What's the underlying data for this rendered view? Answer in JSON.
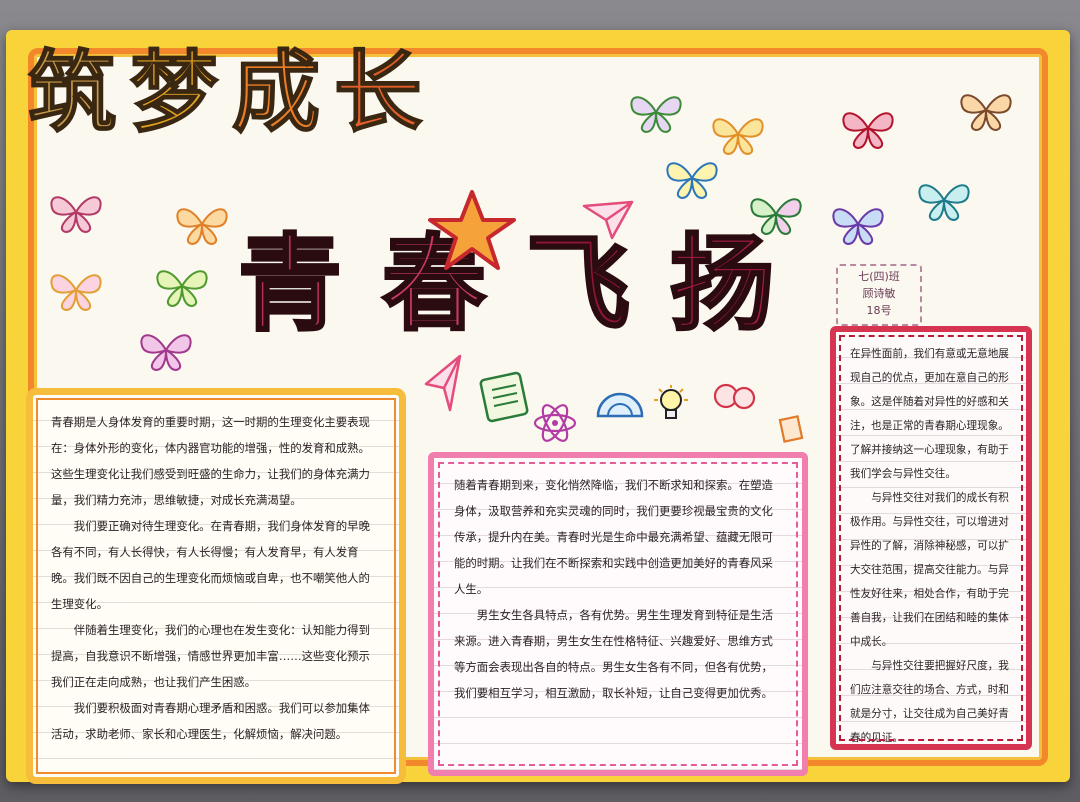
{
  "title_line1": [
    "筑",
    "梦",
    "成",
    "长"
  ],
  "title_line2": [
    "青",
    "春",
    "飞",
    "扬"
  ],
  "class_tag": [
    "七(四)班",
    "顾诗敏",
    "18号"
  ],
  "left_box": [
    "青春期是人身体发育的重要时期，这一时期的生理变化主要表现在：身体外形的变化，体内器官功能的增强，性的发育和成熟。这些生理变化让我们感受到旺盛的生命力，让我们的身体充满力量，我们精力充沛，思维敏捷，对成长充满渴望。",
    "我们要正确对待生理变化。在青春期，我们身体发育的早晚各有不同，有人长得快，有人长得慢；有人发育早，有人发育晚。我们既不因自己的生理变化而烦恼或自卑，也不嘲笑他人的生理变化。",
    "伴随着生理变化，我们的心理也在发生变化：认知能力得到提高，自我意识不断增强，情感世界更加丰富……这些变化预示我们正在走向成熟，也让我们产生困惑。",
    "我们要积极面对青春期心理矛盾和困惑。我们可以参加集体活动，求助老师、家长和心理医生，化解烦恼，解决问题。"
  ],
  "mid_box": [
    "随着青春期到来，变化悄然降临，我们不断求知和探索。在塑造身体，汲取营养和充实灵魂的同时，我们更要珍视最宝贵的文化传承，提升内在美。青春时光是生命中最充满希望、蕴藏无限可能的时期。让我们在不断探索和实践中创造更加美好的青春风采人生。",
    "男生女生各具特点，各有优势。男生生理发育到特征是生活来源。进入青春期，男生女生在性格特征、兴趣爱好、思维方式等方面会表现出各自的特点。男生女生各有不同，但各有优势，我们要相互学习，相互激励，取长补短，让自己变得更加优秀。"
  ],
  "right_box": [
    "在异性面前，我们有意或无意地展现自己的优点，更加在意自己的形象。这是伴随着对异性的好感和关注，也是正常的青春期心理现象。了解并接纳这一心理现象，有助于我们学会与异性交往。",
    "与异性交往对我们的成长有积极作用。与异性交往，可以增进对异性的了解，消除神秘感，可以扩大交往范围，提高交往能力。与异性友好往来，相处合作，有助于完善自我，让我们在团结和睦的集体中成长。",
    "与异性交往要把握好尺度，我们应注意交往的场合、方式，时和就是分寸，让交往成为自己美好青春的见证。"
  ],
  "colors": {
    "paper_yellow": "#f8d43a",
    "frame_orange": "#f2872b",
    "left_border": "#f6bd3d",
    "mid_border": "#f07fae",
    "right_border": "#d63551"
  }
}
